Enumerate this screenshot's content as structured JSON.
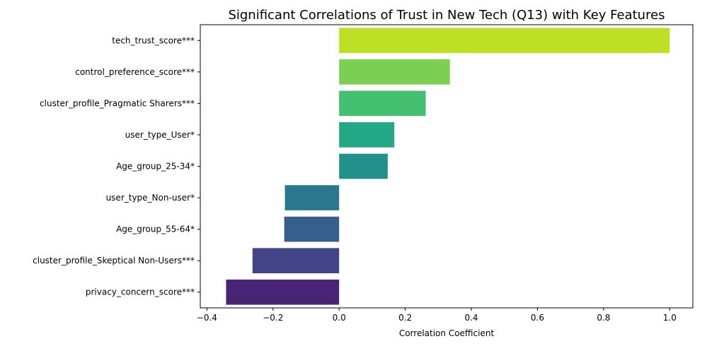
{
  "chart_data": {
    "type": "bar",
    "orientation": "horizontal",
    "title": "Significant Correlations of Trust in New Tech (Q13) with Key Features",
    "xlabel": "Correlation Coefficient",
    "ylabel": "",
    "xlim": [
      -0.42,
      1.07
    ],
    "xticks": [
      -0.4,
      -0.2,
      0.0,
      0.2,
      0.4,
      0.6,
      0.8,
      1.0
    ],
    "xtick_labels": [
      "−0.4",
      "−0.2",
      "0.0",
      "0.2",
      "0.4",
      "0.6",
      "0.8",
      "1.0"
    ],
    "grid": false,
    "legend": "none",
    "categories": [
      "tech_trust_score***",
      "control_preference_score***",
      "cluster_profile_Pragmatic Sharers***",
      "user_type_User*",
      "Age_group_25-34*",
      "user_type_Non-user*",
      "Age_group_55-64*",
      "cluster_profile_Skeptical Non-Users***",
      "privacy_concern_score***"
    ],
    "values": [
      1.0,
      0.335,
      0.262,
      0.167,
      0.147,
      -0.164,
      -0.166,
      -0.262,
      -0.342
    ],
    "colors": [
      "#bddf26",
      "#7ad151",
      "#44bf70",
      "#22a884",
      "#21918c",
      "#2a788e",
      "#355f8d",
      "#414487",
      "#482475"
    ]
  }
}
